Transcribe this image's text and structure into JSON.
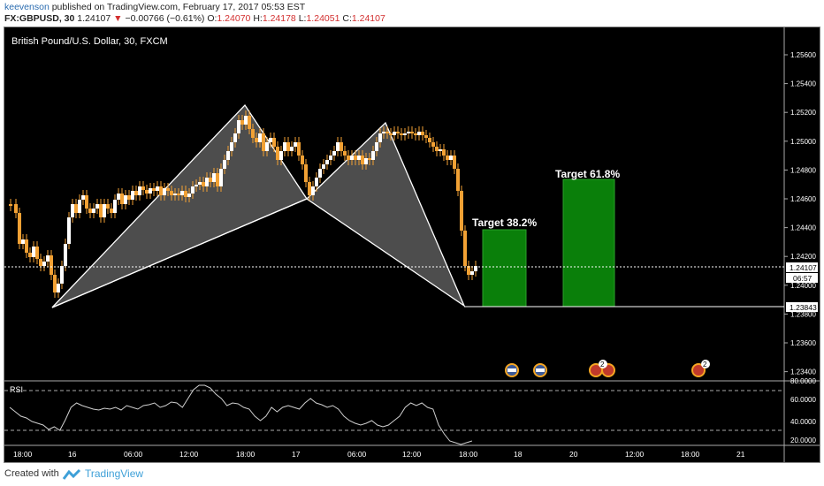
{
  "header": {
    "username": "keevenson",
    "published_text": "published on TradingView.com, February 17, 2017 05:53 EST",
    "symbol": "FX:GBPUSD, 30",
    "last": "1.24107",
    "change": "−0.00766 (−0.61%)",
    "o_label": "O:",
    "o_val": "1.24070",
    "h_label": "H:",
    "h_val": "1.24178",
    "l_label": "L:",
    "l_val": "1.24051",
    "c_label": "C:",
    "c_val": "1.24107"
  },
  "chart": {
    "instrument_title": "British Pound/U.S. Dollar, 30, FXCM",
    "price_ticks": [
      "1.25600",
      "1.25400",
      "1.25200",
      "1.25000",
      "1.24800",
      "1.24600",
      "1.24400",
      "1.24200",
      "1.24000",
      "1.23800",
      "1.23600",
      "1.23400"
    ],
    "current_price": "1.24107",
    "countdown": "06:57",
    "low_price_label": "1.23843",
    "target_1_label": "Target 38.2%",
    "target_2_label": "Target 61.8%",
    "time_ticks": [
      "18:00",
      "16",
      "06:00",
      "12:00",
      "18:00",
      "17",
      "06:00",
      "12:00",
      "18:00",
      "18",
      "20",
      "12:00",
      "18:00",
      "21"
    ],
    "event_badge_count": "2",
    "event_badge_count_2": "2",
    "colors": {
      "background": "#000000",
      "candle": "#f2a134",
      "pattern_fill": "#5a5a5a",
      "pattern_line": "#ffffff",
      "target_fill": "#0a7f0a",
      "rsi_line": "#cfcfcf"
    }
  },
  "rsi": {
    "label": "RSI",
    "ticks": [
      "80.0000",
      "60.0000",
      "40.0000",
      "20.0000"
    ]
  },
  "footer": {
    "created_with": "Created with",
    "brand": "TradingView"
  }
}
